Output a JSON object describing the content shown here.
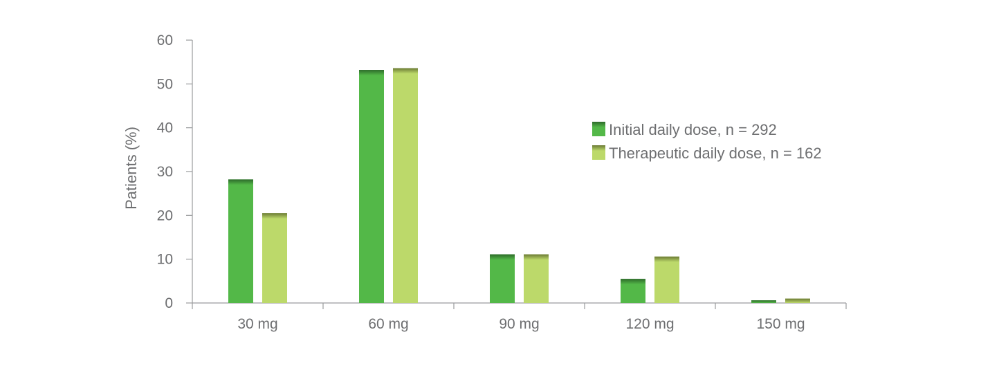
{
  "chart_data": {
    "type": "bar",
    "title": "",
    "xlabel": "",
    "ylabel": "Patients (%)",
    "ylim": [
      0,
      60
    ],
    "yticks": [
      0,
      10,
      20,
      30,
      40,
      50,
      60
    ],
    "categories": [
      "30 mg",
      "60 mg",
      "90 mg",
      "120 mg",
      "150 mg"
    ],
    "series": [
      {
        "name": "Initial daily dose, n = 292",
        "values": [
          28.2,
          53.2,
          11.1,
          5.5,
          0.6
        ],
        "color": "#53b848",
        "cap_color": "#2d6a2a"
      },
      {
        "name": "Therapeutic daily dose, n = 162",
        "values": [
          20.5,
          53.6,
          11.1,
          10.6,
          1.0
        ],
        "color": "#bcd96a",
        "cap_color": "#6b7a35"
      }
    ],
    "grid": false,
    "legend_position": "right"
  }
}
